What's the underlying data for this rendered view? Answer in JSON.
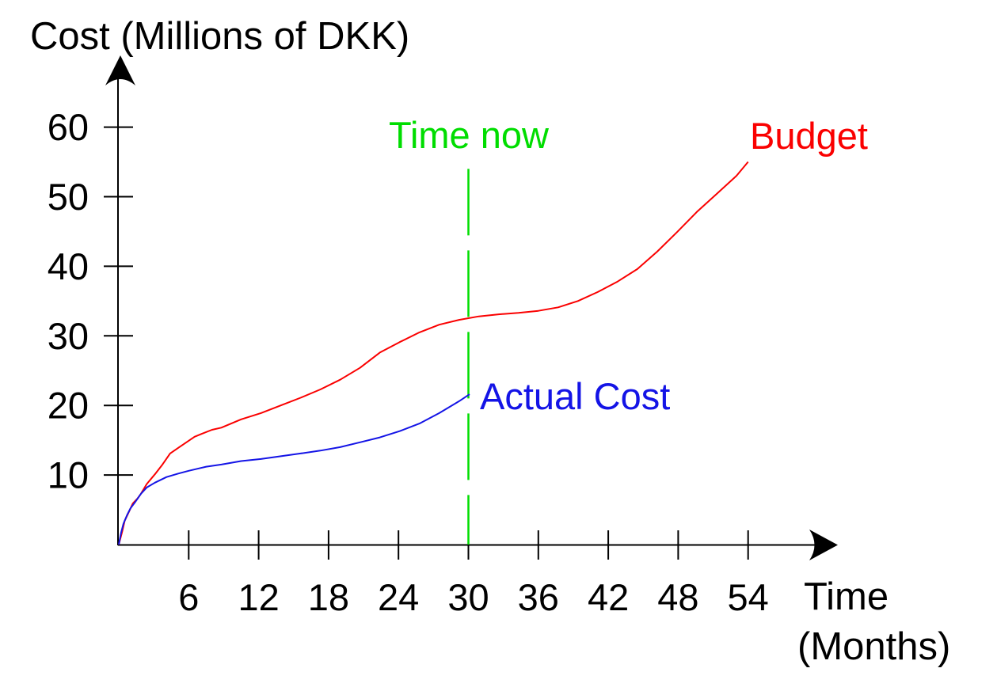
{
  "page": {
    "background": "#ffffff",
    "text_color": "#000000"
  },
  "chart_data": {
    "type": "line",
    "title": "",
    "ylabel": "Cost (Millions of DKK)",
    "xlabel_line1": "Time",
    "xlabel_line2": "(Months)",
    "xlabel": "Time (Months)",
    "x_unit": "Months",
    "y_unit": "Millions of DKK",
    "x_ticks": [
      6,
      12,
      18,
      24,
      30,
      36,
      42,
      48,
      54
    ],
    "y_ticks": [
      10,
      20,
      30,
      40,
      50,
      60
    ],
    "xlim": [
      0,
      60
    ],
    "ylim": [
      0,
      67
    ],
    "grid": false,
    "legend_position": "inline-labels",
    "axis_color": "#000000",
    "time_now": {
      "label": "Time now",
      "month": 30,
      "color": "#00dd00",
      "line_style": "dashed",
      "line_top_value": 54
    },
    "series": [
      {
        "name": "Budget",
        "color": "#fa0000",
        "points": [
          [
            0,
            0
          ],
          [
            0.3,
            1.9
          ],
          [
            0.5,
            3.4
          ],
          [
            0.9,
            4.8
          ],
          [
            1.2,
            5.9
          ],
          [
            1.6,
            6.6
          ],
          [
            1.9,
            7.3
          ],
          [
            2.4,
            8.7
          ],
          [
            3.1,
            10.1
          ],
          [
            3.7,
            11.4
          ],
          [
            4.4,
            13.1
          ],
          [
            5.1,
            13.9
          ],
          [
            5.8,
            14.7
          ],
          [
            6.5,
            15.5
          ],
          [
            7.1,
            15.9
          ],
          [
            8.0,
            16.5
          ],
          [
            8.8,
            16.8
          ],
          [
            10.5,
            18.0
          ],
          [
            12.2,
            18.9
          ],
          [
            13.9,
            20.0
          ],
          [
            15.6,
            21.1
          ],
          [
            17.3,
            22.3
          ],
          [
            19.0,
            23.7
          ],
          [
            20.7,
            25.4
          ],
          [
            22.4,
            27.6
          ],
          [
            24.1,
            29.1
          ],
          [
            25.8,
            30.5
          ],
          [
            27.5,
            31.6
          ],
          [
            29.2,
            32.3
          ],
          [
            30.9,
            32.8
          ],
          [
            32.6,
            33.1
          ],
          [
            34.3,
            33.3
          ],
          [
            36.0,
            33.6
          ],
          [
            37.7,
            34.1
          ],
          [
            39.4,
            35.0
          ],
          [
            41.1,
            36.3
          ],
          [
            42.8,
            37.8
          ],
          [
            44.5,
            39.6
          ],
          [
            46.2,
            42.1
          ],
          [
            47.9,
            44.9
          ],
          [
            49.6,
            47.8
          ],
          [
            51.3,
            50.4
          ],
          [
            53.0,
            53.0
          ],
          [
            54.0,
            55.0
          ]
        ]
      },
      {
        "name": "Actual Cost",
        "color": "#1414e6",
        "points": [
          [
            0,
            0
          ],
          [
            0.2,
            1.7
          ],
          [
            0.4,
            3.0
          ],
          [
            0.7,
            4.2
          ],
          [
            1.0,
            5.2
          ],
          [
            1.4,
            6.1
          ],
          [
            1.7,
            6.8
          ],
          [
            1.9,
            7.3
          ],
          [
            2.4,
            8.2
          ],
          [
            3.1,
            8.9
          ],
          [
            4.1,
            9.7
          ],
          [
            5.1,
            10.2
          ],
          [
            6.0,
            10.6
          ],
          [
            7.5,
            11.2
          ],
          [
            8.8,
            11.5
          ],
          [
            10.5,
            12.0
          ],
          [
            12.2,
            12.3
          ],
          [
            13.9,
            12.7
          ],
          [
            15.6,
            13.1
          ],
          [
            17.3,
            13.5
          ],
          [
            19.0,
            14.0
          ],
          [
            20.7,
            14.7
          ],
          [
            22.4,
            15.4
          ],
          [
            24.1,
            16.3
          ],
          [
            25.8,
            17.4
          ],
          [
            27.5,
            18.9
          ],
          [
            29.2,
            20.6
          ],
          [
            30.1,
            21.6
          ]
        ]
      }
    ]
  }
}
